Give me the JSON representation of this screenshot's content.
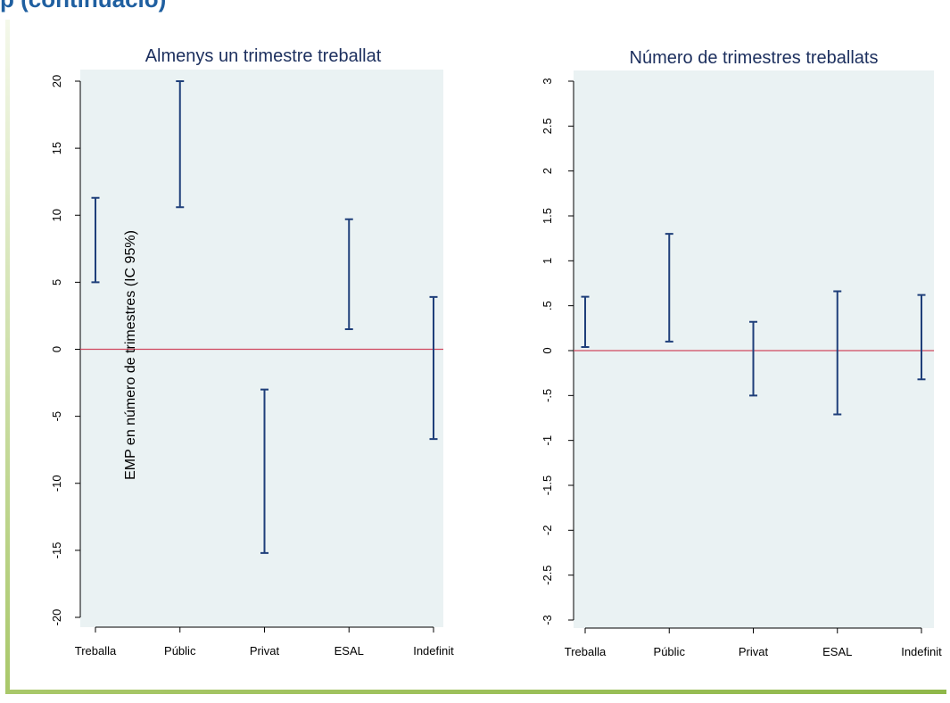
{
  "header": {
    "text": "p (continuació)"
  },
  "colors": {
    "ci": "#1f3f7a",
    "zero_line": "#d0485e",
    "plot_bg": "#eaf2f3",
    "title": "#1c2f5e"
  },
  "chart_data": [
    {
      "type": "errorbar",
      "title": "Almenys un trimestre treballat",
      "ylabel": "EMP en número de trimestres (IC 95%)",
      "xlabel": "",
      "categories": [
        "Treballa",
        "Públic",
        "Privat",
        "ESAL",
        "Indefinit"
      ],
      "lower": [
        5.0,
        10.6,
        -15.2,
        1.5,
        -6.7
      ],
      "upper": [
        11.3,
        20.0,
        -3.0,
        9.7,
        3.9
      ],
      "ylim": [
        -20,
        20
      ],
      "yticks": [
        20,
        15,
        10,
        5,
        0,
        -5,
        -10,
        -15,
        -20
      ],
      "ytick_labels": [
        "20",
        "15",
        "10",
        "5",
        "0",
        "-5",
        "-10",
        "-15",
        "-20"
      ],
      "reference_line": 0,
      "grid": false
    },
    {
      "type": "errorbar",
      "title": "Número de trimestres treballats",
      "ylabel": "",
      "xlabel": "",
      "categories": [
        "Treballa",
        "Públic",
        "Privat",
        "ESAL",
        "Indefinit"
      ],
      "lower": [
        0.04,
        0.1,
        -0.5,
        -0.71,
        -0.32
      ],
      "upper": [
        0.6,
        1.3,
        0.32,
        0.66,
        0.62
      ],
      "ylim": [
        -3,
        3
      ],
      "yticks": [
        3,
        2.5,
        2,
        1.5,
        1,
        0.5,
        0,
        -0.5,
        -1,
        -1.5,
        -2,
        -2.5,
        -3
      ],
      "ytick_labels": [
        "3",
        "2.5",
        "2",
        "1.5",
        "1",
        ".5",
        "0",
        "-.5",
        "-1",
        "-1.5",
        "-2",
        "-2.5",
        "-3"
      ],
      "reference_line": 0,
      "grid": false
    }
  ]
}
